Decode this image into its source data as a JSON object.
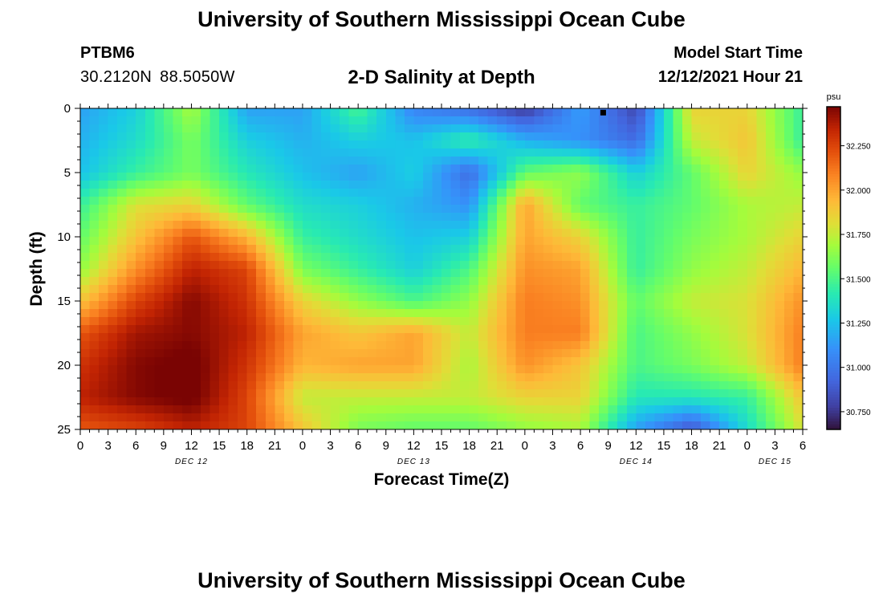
{
  "page": {
    "title": "University of Southern Mississippi Ocean Cube",
    "station_id": "PTBM6",
    "latitude": "30.2120N",
    "longitude": "88.5050W",
    "subtitle": "2-D Salinity at Depth",
    "model_start_label": "Model Start Time",
    "model_start_value": "12/12/2021 Hour 21",
    "footer_title": "University of Southern Mississippi Ocean Cube"
  },
  "chart_data": {
    "type": "heatmap",
    "title": "2-D Salinity at Depth",
    "xlabel": "Forecast Time(Z)",
    "ylabel": "Depth (ft)",
    "x_unit": "hours from DEC 12 00Z",
    "xlim": [
      0,
      78
    ],
    "ylim": [
      0,
      25
    ],
    "y_inverted": true,
    "x_ticks": [
      0,
      3,
      6,
      9,
      12,
      15,
      18,
      21,
      24,
      27,
      30,
      33,
      36,
      39,
      42,
      45,
      48,
      51,
      54,
      57,
      60,
      63,
      66,
      69,
      72,
      75,
      78
    ],
    "x_tick_labels": [
      "0",
      "3",
      "6",
      "9",
      "12",
      "15",
      "18",
      "21",
      "0",
      "3",
      "6",
      "9",
      "12",
      "15",
      "18",
      "21",
      "0",
      "3",
      "6",
      "9",
      "12",
      "15",
      "18",
      "21",
      "0",
      "3",
      "6"
    ],
    "y_ticks": [
      0,
      5,
      10,
      15,
      20,
      25
    ],
    "y_tick_labels": [
      "0",
      "5",
      "10",
      "15",
      "20",
      "25"
    ],
    "date_labels": [
      {
        "label": "DEC 12",
        "hour": 12
      },
      {
        "label": "DEC 13",
        "hour": 36
      },
      {
        "label": "DEC 14",
        "hour": 60
      },
      {
        "label": "DEC 15",
        "hour": 75
      }
    ],
    "colorbar": {
      "unit": "psu",
      "min": 30.65,
      "max": 32.47,
      "ticks": [
        30.75,
        31.0,
        31.25,
        31.5,
        31.75,
        32.0,
        32.25
      ],
      "tick_labels": [
        "30.750",
        "31.000",
        "31.250",
        "31.500",
        "31.750",
        "32.000",
        "32.250"
      ]
    },
    "grid": {
      "hours": [
        0,
        6,
        12,
        18,
        24,
        30,
        36,
        42,
        48,
        54,
        60,
        66,
        72,
        78
      ],
      "depths_ft": [
        0,
        2.5,
        5,
        7.5,
        10,
        12.5,
        15,
        17.5,
        20,
        22.5,
        25
      ],
      "salinity_psu": [
        [
          31.15,
          31.3,
          31.7,
          31.15,
          31.15,
          31.5,
          31.05,
          30.95,
          30.75,
          31.15,
          30.8,
          31.85,
          31.85,
          31.45
        ],
        [
          31.2,
          31.35,
          31.6,
          31.3,
          31.2,
          31.3,
          31.25,
          31.45,
          31.2,
          31.1,
          30.95,
          31.75,
          31.9,
          31.45
        ],
        [
          31.25,
          31.45,
          31.6,
          31.4,
          31.25,
          31.15,
          31.3,
          30.95,
          31.55,
          31.65,
          31.3,
          31.55,
          31.85,
          31.65
        ],
        [
          31.45,
          31.8,
          31.85,
          31.55,
          31.35,
          31.3,
          31.2,
          31.1,
          32.0,
          31.55,
          31.45,
          31.55,
          31.7,
          31.75
        ],
        [
          31.55,
          31.9,
          32.2,
          31.95,
          31.45,
          31.35,
          31.25,
          31.3,
          32.0,
          31.85,
          31.45,
          31.6,
          31.7,
          31.85
        ],
        [
          31.65,
          32.05,
          32.35,
          32.25,
          31.6,
          31.45,
          31.3,
          31.5,
          32.05,
          32.0,
          31.45,
          31.65,
          31.75,
          31.95
        ],
        [
          31.9,
          32.25,
          32.45,
          32.3,
          31.85,
          31.65,
          31.5,
          31.65,
          32.1,
          32.05,
          31.55,
          31.75,
          31.8,
          32.05
        ],
        [
          32.2,
          32.4,
          32.45,
          32.35,
          32.0,
          31.9,
          32.0,
          31.75,
          32.1,
          32.1,
          31.5,
          31.65,
          31.8,
          32.1
        ],
        [
          32.3,
          32.45,
          32.5,
          32.3,
          31.95,
          32.0,
          32.0,
          31.7,
          32.05,
          31.9,
          31.5,
          31.6,
          31.75,
          32.1
        ],
        [
          32.35,
          32.45,
          32.5,
          32.25,
          31.75,
          31.75,
          31.75,
          31.75,
          31.85,
          31.85,
          31.4,
          31.4,
          31.45,
          31.9
        ],
        [
          32.2,
          32.25,
          32.35,
          32.25,
          31.9,
          31.6,
          31.55,
          31.55,
          31.65,
          31.7,
          31.15,
          30.85,
          31.35,
          31.8
        ]
      ]
    },
    "marker": {
      "hour": 56.5,
      "depth_ft": 0.3
    }
  }
}
